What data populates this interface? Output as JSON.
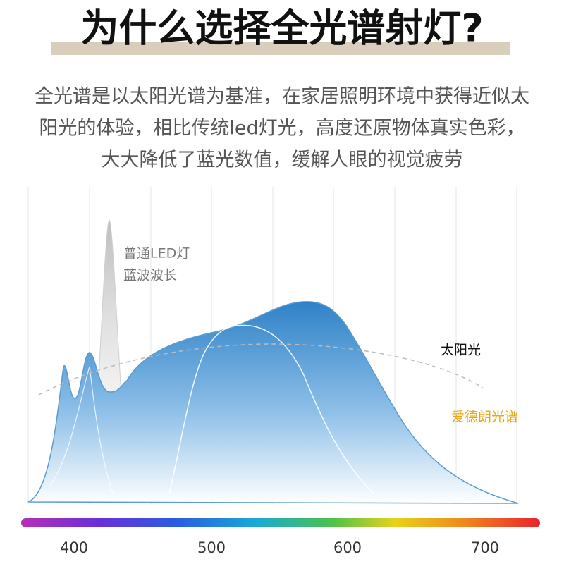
{
  "header": {
    "title": "为什么选择全光谱射灯?"
  },
  "description": [
    "全光谱是以太阳光谱为基准，在家居照明环境中获得近似太",
    "阳光的体验，相比传统led灯光，高度还原物体真实色彩，",
    "大大降低了蓝光数值，缓解人眼的视觉疲劳"
  ],
  "labels": {
    "led": [
      "普通LED灯",
      "蓝波波长"
    ],
    "sun": "太阳光",
    "brand": "爱德朗光谱"
  },
  "axis": {
    "ticks": [
      "400",
      "500",
      "600",
      "700"
    ]
  }
}
